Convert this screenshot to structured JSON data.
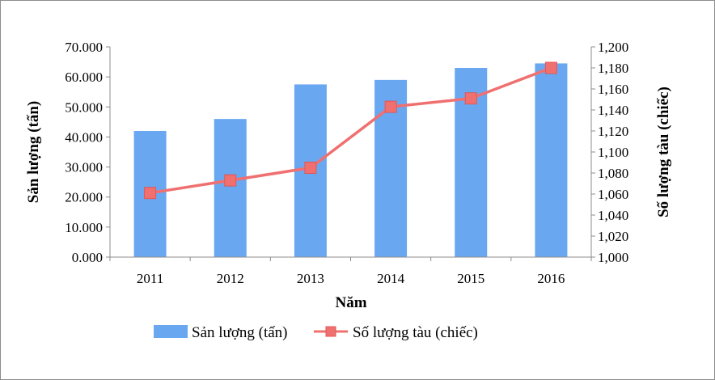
{
  "chart_data": {
    "type": "bar+line",
    "categories": [
      "2011",
      "2012",
      "2013",
      "2014",
      "2015",
      "2016"
    ],
    "series": [
      {
        "name": "Sản lượng (tấn)",
        "type": "bar",
        "axis": "left",
        "color": "#69a7f1",
        "values": [
          42000,
          46000,
          57500,
          59000,
          63000,
          64500
        ]
      },
      {
        "name": "Số lượng tàu (chiếc)",
        "type": "line",
        "axis": "right",
        "color": "#f07070",
        "values": [
          1061,
          1073,
          1085,
          1143,
          1151,
          1180
        ]
      }
    ],
    "xlabel": "Năm",
    "ylabel": "Sản lượng (tấn)",
    "y2label": "Số lượng tàu (chiếc)",
    "ylim": [
      0,
      70000
    ],
    "y2lim": [
      1000,
      1200
    ],
    "yticks": [
      "0.000",
      "10.000",
      "20.000",
      "30.000",
      "40.000",
      "50.000",
      "60.000",
      "70.000"
    ],
    "y2ticks": [
      "1,000",
      "1,020",
      "1,040",
      "1,060",
      "1,080",
      "1,100",
      "1,120",
      "1,140",
      "1,160",
      "1,180",
      "1,200"
    ],
    "grid": false,
    "legend_position": "bottom"
  }
}
